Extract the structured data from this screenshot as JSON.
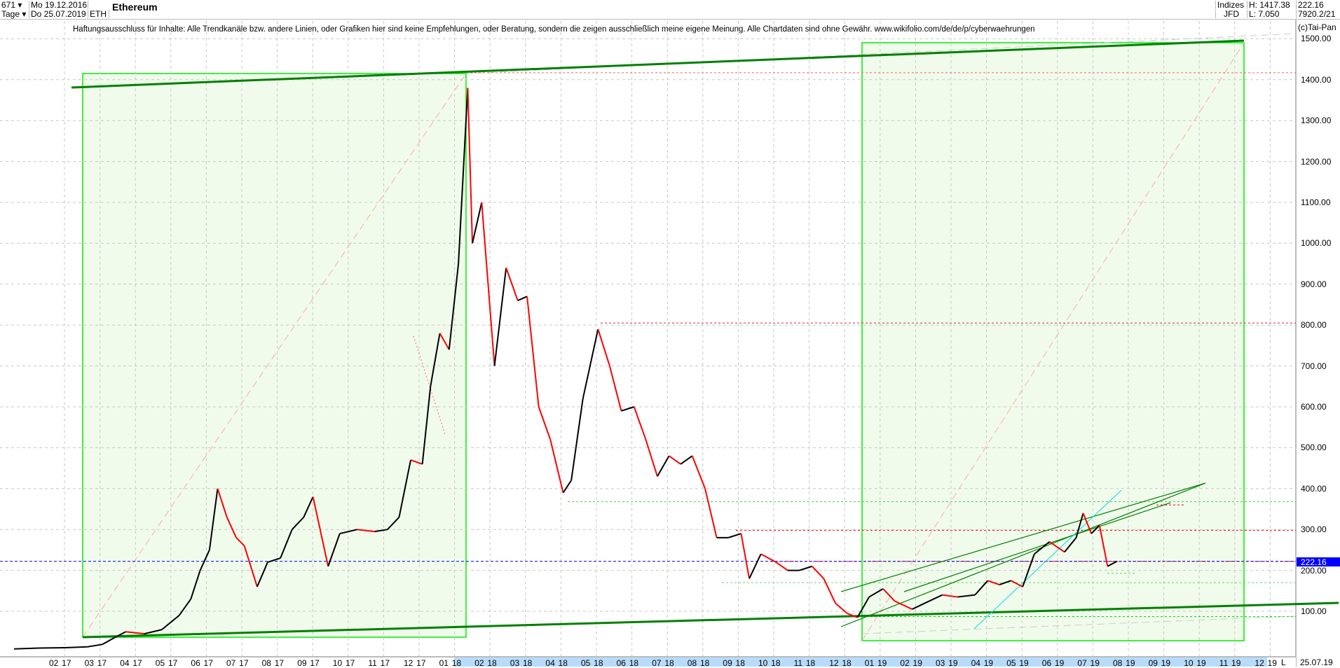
{
  "header": {
    "bars": "671 ▾",
    "interval": "Tage ▾",
    "start_date": "Mo 19.12.2016",
    "end_date": "Do 25.07.2019",
    "symbol": "ETH",
    "title": "Ethereum",
    "exchange_top": "Indizes",
    "exchange_bottom": "JFD",
    "high": "H: 1417.38",
    "low": "L: 7.050",
    "last": "222.16",
    "extra": "7920.2/21"
  },
  "disclaimer": "Haftungsausschluss für Inhalte: Alle Trendkanäle bzw. andere Linien, oder Grafiken hier sind keine Empfehlungen, oder Beratung, sondern die zeigen ausschließlich meine eigene Meinung. Alle Chartdaten sind ohne Gewähr.  www.wikifolio.com/de/de/p/cyberwaehrungen",
  "copyright": "(c)Tai-Pan",
  "footer": {
    "l_marker": "L",
    "last_date": "25.07.19"
  },
  "colors": {
    "up": "#000000",
    "down": "#ff0000",
    "trend": "#008000",
    "box": "#00ee00",
    "box_fill": "#f0fbec",
    "current": "#0000ff",
    "axis_band": "#b7dcfb"
  },
  "chart_data": {
    "type": "line",
    "style": "candlestick (approximated closes)",
    "ylim": [
      0,
      1550
    ],
    "y_ticks": [
      "100.00",
      "200.00",
      "300.00",
      "400.00",
      "500.00",
      "600.00",
      "700.00",
      "800.00",
      "900.00",
      "1000.00",
      "1100.00",
      "1200.00",
      "1300.00",
      "1400.00",
      "1500.00"
    ],
    "x_ticks": [
      "02 17",
      "03 17",
      "04 17",
      "05 17",
      "06 17",
      "07 17",
      "08 17",
      "09 17",
      "10 17",
      "11 17",
      "12 17",
      "01 18",
      "02 18",
      "03 18",
      "04 18",
      "05 18",
      "06 18",
      "07 18",
      "08 18",
      "09 18",
      "10 18",
      "11 18",
      "12 18",
      "01 19",
      "02 19",
      "03 19",
      "04 19",
      "05 19",
      "06 19",
      "07 19",
      "08 19",
      "09 19",
      "10 19",
      "11 19",
      "12 19"
    ],
    "current_price": 222.16,
    "grid": true,
    "series": [
      [
        "2016-12-19",
        7.9
      ],
      [
        "2017-01-10",
        10
      ],
      [
        "2017-02-01",
        11
      ],
      [
        "2017-02-20",
        13
      ],
      [
        "2017-03-05",
        19
      ],
      [
        "2017-03-15",
        35
      ],
      [
        "2017-03-25",
        50
      ],
      [
        "2017-04-10",
        45
      ],
      [
        "2017-04-25",
        55
      ],
      [
        "2017-05-10",
        90
      ],
      [
        "2017-05-20",
        130
      ],
      [
        "2017-05-28",
        200
      ],
      [
        "2017-06-05",
        250
      ],
      [
        "2017-06-12",
        400
      ],
      [
        "2017-06-20",
        330
      ],
      [
        "2017-06-28",
        280
      ],
      [
        "2017-07-05",
        260
      ],
      [
        "2017-07-16",
        160
      ],
      [
        "2017-07-25",
        220
      ],
      [
        "2017-08-05",
        230
      ],
      [
        "2017-08-15",
        300
      ],
      [
        "2017-08-25",
        330
      ],
      [
        "2017-09-02",
        380
      ],
      [
        "2017-09-15",
        210
      ],
      [
        "2017-09-25",
        290
      ],
      [
        "2017-10-10",
        300
      ],
      [
        "2017-10-25",
        295
      ],
      [
        "2017-11-05",
        300
      ],
      [
        "2017-11-15",
        330
      ],
      [
        "2017-11-25",
        470
      ],
      [
        "2017-12-05",
        460
      ],
      [
        "2017-12-12",
        650
      ],
      [
        "2017-12-20",
        780
      ],
      [
        "2017-12-28",
        740
      ],
      [
        "2018-01-05",
        950
      ],
      [
        "2018-01-13",
        1380
      ],
      [
        "2018-01-17",
        1000
      ],
      [
        "2018-01-25",
        1100
      ],
      [
        "2018-02-05",
        700
      ],
      [
        "2018-02-15",
        940
      ],
      [
        "2018-02-25",
        860
      ],
      [
        "2018-03-05",
        870
      ],
      [
        "2018-03-15",
        600
      ],
      [
        "2018-03-25",
        520
      ],
      [
        "2018-04-05",
        390
      ],
      [
        "2018-04-12",
        420
      ],
      [
        "2018-04-22",
        620
      ],
      [
        "2018-05-05",
        790
      ],
      [
        "2018-05-15",
        700
      ],
      [
        "2018-05-25",
        590
      ],
      [
        "2018-06-05",
        600
      ],
      [
        "2018-06-15",
        520
      ],
      [
        "2018-06-25",
        430
      ],
      [
        "2018-07-05",
        480
      ],
      [
        "2018-07-15",
        460
      ],
      [
        "2018-07-25",
        480
      ],
      [
        "2018-08-05",
        400
      ],
      [
        "2018-08-15",
        280
      ],
      [
        "2018-08-25",
        280
      ],
      [
        "2018-09-05",
        290
      ],
      [
        "2018-09-12",
        180
      ],
      [
        "2018-09-22",
        240
      ],
      [
        "2018-10-05",
        220
      ],
      [
        "2018-10-15",
        200
      ],
      [
        "2018-10-25",
        200
      ],
      [
        "2018-11-05",
        210
      ],
      [
        "2018-11-15",
        180
      ],
      [
        "2018-11-25",
        120
      ],
      [
        "2018-12-05",
        95
      ],
      [
        "2018-12-14",
        85
      ],
      [
        "2018-12-24",
        135
      ],
      [
        "2019-01-05",
        155
      ],
      [
        "2019-01-15",
        125
      ],
      [
        "2019-01-30",
        105
      ],
      [
        "2019-02-10",
        120
      ],
      [
        "2019-02-25",
        140
      ],
      [
        "2019-03-10",
        135
      ],
      [
        "2019-03-25",
        140
      ],
      [
        "2019-04-05",
        175
      ],
      [
        "2019-04-15",
        165
      ],
      [
        "2019-04-25",
        175
      ],
      [
        "2019-05-05",
        160
      ],
      [
        "2019-05-15",
        240
      ],
      [
        "2019-05-28",
        270
      ],
      [
        "2019-06-10",
        245
      ],
      [
        "2019-06-20",
        280
      ],
      [
        "2019-06-26",
        340
      ],
      [
        "2019-07-03",
        290
      ],
      [
        "2019-07-10",
        310
      ],
      [
        "2019-07-17",
        210
      ],
      [
        "2019-07-25",
        222.16
      ]
    ]
  }
}
